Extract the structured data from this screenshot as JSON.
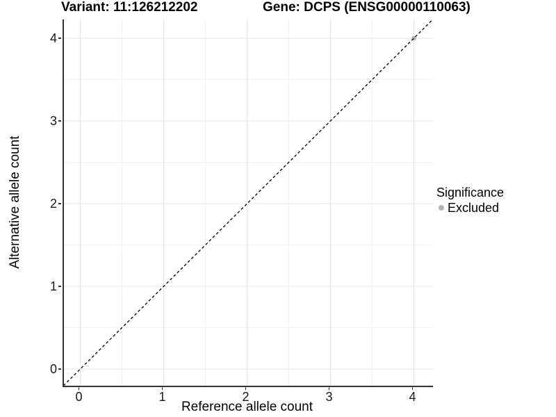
{
  "header": {
    "variant_title": "Variant: 11:126212202",
    "gene_title": "Gene: DCPS (ENSG00000110063)"
  },
  "chart_data": {
    "type": "scatter",
    "title": "Variant: 11:126212202   Gene: DCPS (ENSG00000110063)",
    "xlabel": "Reference allele count",
    "ylabel": "Alternative allele count",
    "xlim": [
      -0.196,
      4.229
    ],
    "ylim": [
      -0.202,
      4.227
    ],
    "x_ticks": [
      0,
      1,
      2,
      3,
      4
    ],
    "y_ticks": [
      0,
      1,
      2,
      3,
      4
    ],
    "x_minor_ticks": [
      0.5,
      1.5,
      2.5,
      3.5
    ],
    "y_minor_ticks": [
      0.5,
      1.5,
      2.5,
      3.5
    ],
    "grid": "on",
    "identity_line": {
      "style": "dashed",
      "color": "#000000",
      "equation": "y = x"
    },
    "series": [
      {
        "name": "Excluded",
        "color": "#b3b3b3",
        "points": [
          {
            "x": 4,
            "y": 4
          }
        ]
      }
    ],
    "legend": {
      "position": "right",
      "title": "Significance",
      "items": [
        {
          "label": "Excluded",
          "color": "#b3b3b3"
        }
      ]
    },
    "colors": {
      "background": "#ffffff",
      "grid_major": "#e6e6e6",
      "grid_minor": "#f2f2f2",
      "axis_line": "#333333",
      "tick_text": "#1a1a1a",
      "point": "#b3b3b3"
    }
  }
}
